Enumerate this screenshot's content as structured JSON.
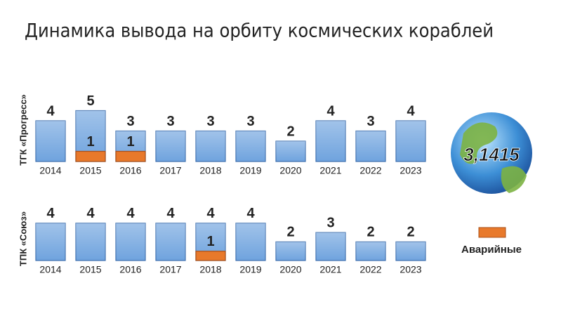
{
  "title": "Динамика вывода на орбиту космических кораблей",
  "logo": "3,1415",
  "chart_data": [
    {
      "type": "bar",
      "ylabel": "ТГК «Прогресс»",
      "categories": [
        "2014",
        "2015",
        "2016",
        "2017",
        "2018",
        "2019",
        "2020",
        "2021",
        "2022",
        "2023"
      ],
      "series": [
        {
          "color": "#6fa3de",
          "values": [
            4,
            5,
            3,
            3,
            3,
            3,
            2,
            4,
            3,
            4
          ]
        },
        {
          "name": "Аварийные",
          "color": "#e8792b",
          "values": [
            null,
            1,
            1,
            null,
            null,
            null,
            null,
            null,
            null,
            null
          ]
        }
      ]
    },
    {
      "type": "bar",
      "ylabel": "ТПК «Союз»",
      "categories": [
        "2014",
        "2015",
        "2016",
        "2017",
        "2018",
        "2019",
        "2020",
        "2021",
        "2022",
        "2023"
      ],
      "series": [
        {
          "color": "#6fa3de",
          "values": [
            4,
            4,
            4,
            4,
            4,
            4,
            2,
            3,
            2,
            2
          ]
        },
        {
          "color": "#e8792b",
          "values": [
            null,
            null,
            null,
            null,
            1,
            null,
            null,
            null,
            null,
            null
          ]
        }
      ]
    }
  ]
}
